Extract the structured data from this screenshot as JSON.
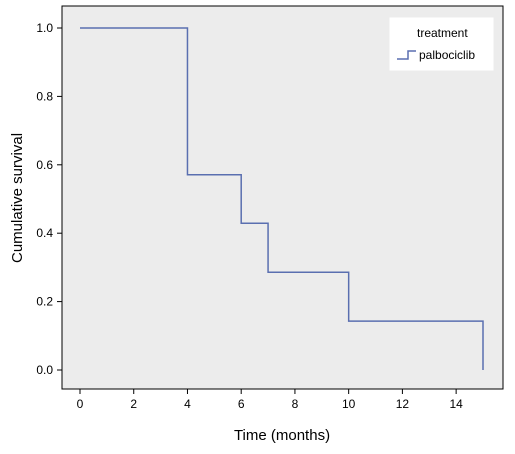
{
  "chart_data": {
    "type": "line",
    "subtype": "kaplan-meier-step",
    "title": "",
    "xlabel": "Time (months)",
    "ylabel": "Cumulative survival",
    "xlim": [
      0,
      15
    ],
    "ylim": [
      0,
      1
    ],
    "x_ticks": [
      "0",
      "2",
      "4",
      "6",
      "8",
      "10",
      "12",
      "14"
    ],
    "y_ticks": [
      "0.0",
      "0.2",
      "0.4",
      "0.6",
      "0.8",
      "1.0"
    ],
    "grid": false,
    "legend": {
      "title": "treatment",
      "placement": "top-right",
      "entries": [
        "palbociclib"
      ]
    },
    "series": [
      {
        "name": "palbociclib",
        "color": "#5a6fb0",
        "x": [
          0,
          4,
          6,
          7,
          10,
          15
        ],
        "y": [
          1.0,
          0.571,
          0.429,
          0.286,
          0.143,
          0.0
        ]
      }
    ],
    "colors": {
      "plot_background": "#ececec",
      "page_background": "#ffffff"
    }
  }
}
